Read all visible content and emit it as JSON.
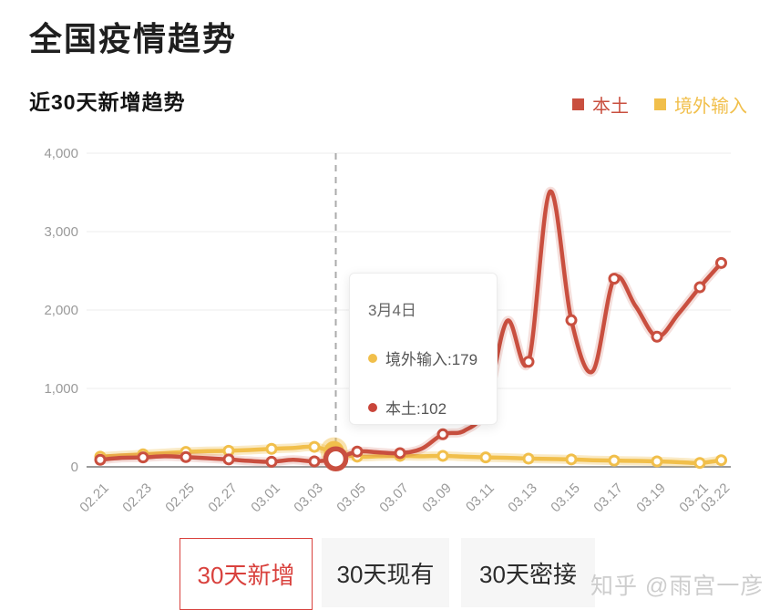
{
  "page": {
    "title": "全国疫情趋势",
    "subtitle": "近30天新增趋势"
  },
  "colors": {
    "local": "#c94f3f",
    "imported": "#f1bf4b",
    "tab_accent": "#d9413d",
    "grid": "#ededed",
    "axis_line": "#9a9a9a",
    "axis_text": "#9a9a9a",
    "dashed_guide": "#ababab"
  },
  "legend": [
    {
      "label": "本土",
      "color": "#c94f3f"
    },
    {
      "label": "境外输入",
      "color": "#f1bf4b"
    }
  ],
  "chart_data": {
    "type": "line",
    "title": "近30天新增趋势",
    "x": [
      "02.21",
      "02.22",
      "02.23",
      "02.24",
      "02.25",
      "02.26",
      "02.27",
      "02.28",
      "03.01",
      "03.02",
      "03.03",
      "03.04",
      "03.05",
      "03.06",
      "03.07",
      "03.08",
      "03.09",
      "03.10",
      "03.11",
      "03.12",
      "03.13",
      "03.14",
      "03.15",
      "03.16",
      "03.17",
      "03.18",
      "03.19",
      "03.20",
      "03.21",
      "03.22"
    ],
    "x_tick_labels": [
      "02.21",
      "02.23",
      "02.25",
      "02.27",
      "03.01",
      "03.03",
      "03.05",
      "03.07",
      "03.09",
      "03.11",
      "03.13",
      "03.15",
      "03.17",
      "03.19",
      "03.21",
      "03.22"
    ],
    "series": [
      {
        "name": "本土",
        "color": "#c94f3f",
        "values": [
          90,
          115,
          120,
          135,
          125,
          110,
          95,
          75,
          65,
          90,
          70,
          102,
          195,
          185,
          175,
          230,
          415,
          460,
          750,
          1860,
          1340,
          3510,
          1870,
          1220,
          2400,
          2050,
          1660,
          1950,
          2290,
          2600
        ]
      },
      {
        "name": "境外输入",
        "color": "#f1bf4b",
        "values": [
          130,
          145,
          160,
          175,
          190,
          200,
          205,
          215,
          230,
          240,
          255,
          179,
          130,
          135,
          140,
          135,
          140,
          130,
          120,
          115,
          105,
          100,
          95,
          85,
          80,
          75,
          70,
          60,
          50,
          85
        ]
      }
    ],
    "ylim": [
      0,
      4000
    ],
    "yticks": [
      0,
      1000,
      2000,
      3000,
      4000
    ],
    "ytick_labels": [
      "0",
      "1,000",
      "2,000",
      "3,000",
      "4,000"
    ],
    "grid": true,
    "legend_position": "top-right",
    "highlight": {
      "x": "03.04",
      "local": 102,
      "imported": 179
    }
  },
  "tooltip": {
    "title": "3月4日",
    "rows": [
      {
        "label": "境外输入:179",
        "color": "#f1bf4b"
      },
      {
        "label": "本土:102",
        "color": "#c9453a"
      }
    ]
  },
  "tabs": [
    {
      "label": "30天新增",
      "selected": true
    },
    {
      "label": "30天现有",
      "selected": false
    },
    {
      "label": "30天密接",
      "selected": false
    }
  ],
  "watermark": "知乎 @雨宫一彦"
}
